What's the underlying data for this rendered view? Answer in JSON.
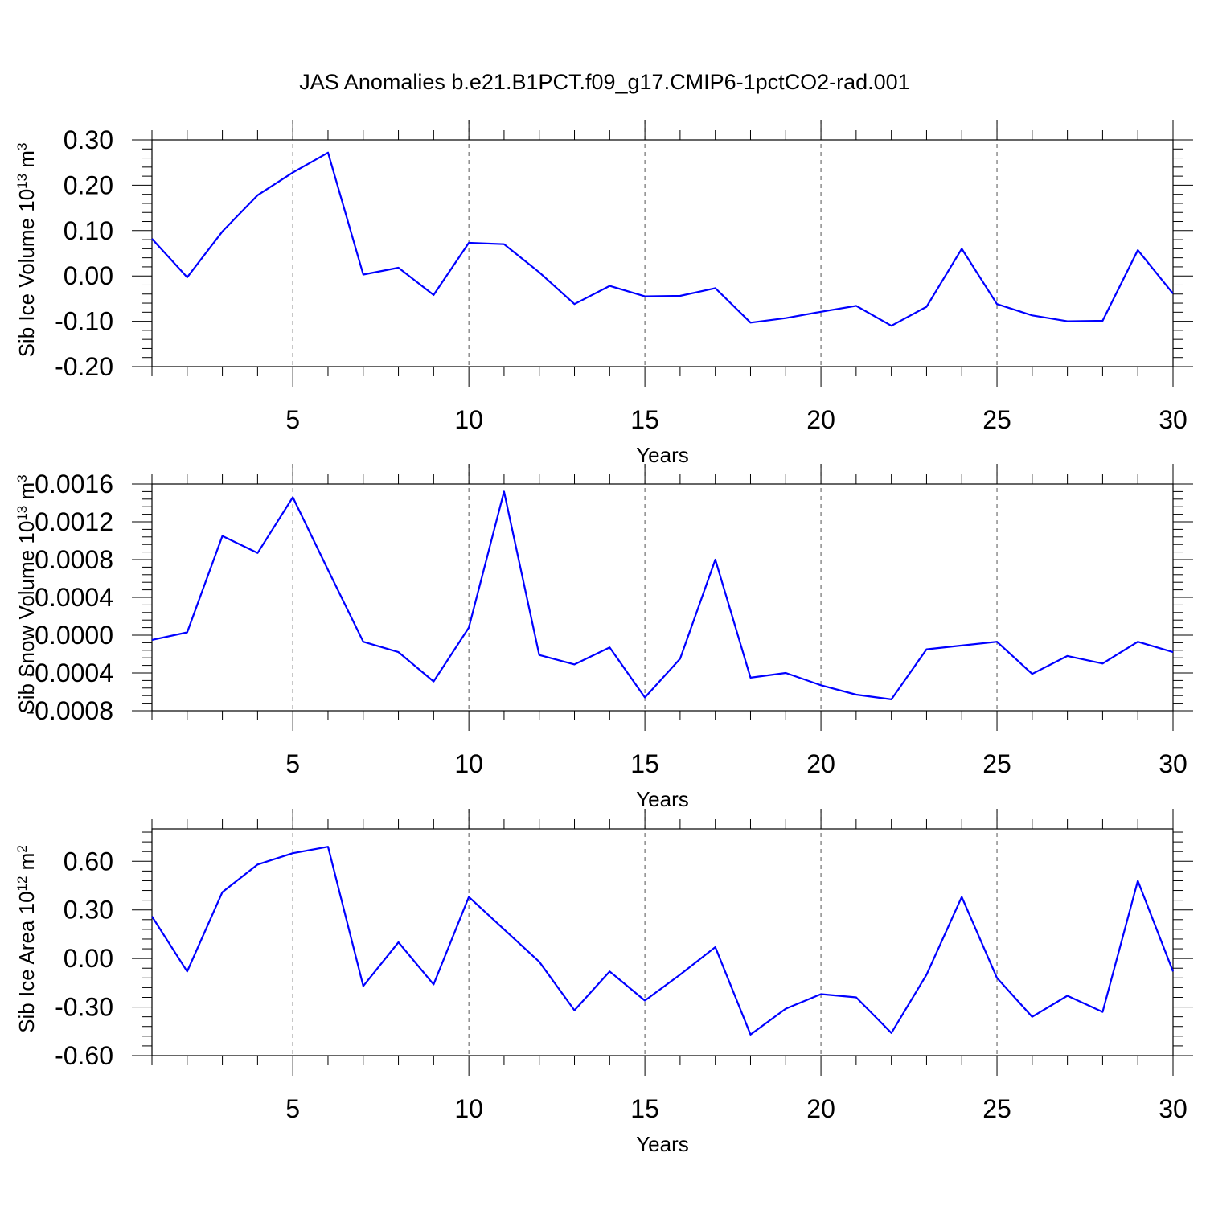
{
  "title": "JAS Anomalies b.e21.B1PCT.f09_g17.CMIP6-1pctCO2-rad.001",
  "colors": {
    "series": "#0000ff",
    "axis": "#000000",
    "grid": "#555555"
  },
  "chart_data": [
    {
      "type": "line",
      "title": "JAS Anomalies b.e21.B1PCT.f09_g17.CMIP6-1pctCO2-rad.001",
      "xlabel": "Years",
      "ylabel": "Sib Ice Volume 10",
      "ylabel_exponent": "13",
      "ylabel_unit": "m",
      "ylabel_unit_exponent": "3",
      "xlim": [
        1,
        30
      ],
      "ylim": [
        -0.2,
        0.3
      ],
      "xticks": [
        5,
        10,
        15,
        20,
        25,
        30
      ],
      "xtick_labels": [
        "5",
        "10",
        "15",
        "20",
        "25",
        "30"
      ],
      "yticks": [
        -0.2,
        -0.1,
        0.0,
        0.1,
        0.2,
        0.3
      ],
      "ytick_labels": [
        "-0.20",
        "-0.10",
        "0.00",
        "0.10",
        "0.20",
        "0.30"
      ],
      "grid": "vertical dashed at major x ticks",
      "x": [
        1,
        2,
        3,
        4,
        5,
        6,
        7,
        8,
        9,
        10,
        11,
        12,
        13,
        14,
        15,
        16,
        17,
        18,
        19,
        20,
        21,
        22,
        23,
        24,
        25,
        26,
        27,
        28,
        29,
        30
      ],
      "series": [
        {
          "color": "#0000ff",
          "values": [
            0.082,
            -0.003,
            0.098,
            0.178,
            0.228,
            0.272,
            0.003,
            0.018,
            -0.042,
            0.073,
            0.07,
            0.008,
            -0.062,
            -0.022,
            -0.045,
            -0.044,
            -0.027,
            -0.103,
            -0.093,
            -0.079,
            -0.066,
            -0.11,
            -0.068,
            0.06,
            -0.062,
            -0.087,
            -0.1,
            -0.099,
            0.057,
            -0.039
          ]
        }
      ]
    },
    {
      "type": "line",
      "xlabel": "Years",
      "ylabel": "Sib Snow Volume 10",
      "ylabel_exponent": "13",
      "ylabel_unit": "m",
      "ylabel_unit_exponent": "3",
      "xlim": [
        1,
        30
      ],
      "ylim": [
        -0.0008,
        0.0016
      ],
      "xticks": [
        5,
        10,
        15,
        20,
        25,
        30
      ],
      "xtick_labels": [
        "5",
        "10",
        "15",
        "20",
        "25",
        "30"
      ],
      "yticks": [
        -0.0008,
        -0.0004,
        0.0,
        0.0004,
        0.0008,
        0.0012,
        0.0016
      ],
      "ytick_labels": [
        "-0.0008",
        "-0.0004",
        "0.0000",
        "0.0004",
        "0.0008",
        "0.0012",
        "0.0016"
      ],
      "grid": "vertical dashed at major x ticks",
      "x": [
        1,
        2,
        3,
        4,
        5,
        6,
        7,
        8,
        9,
        10,
        11,
        12,
        13,
        14,
        15,
        16,
        17,
        18,
        19,
        20,
        21,
        22,
        23,
        24,
        25,
        26,
        27,
        28,
        29,
        30
      ],
      "series": [
        {
          "color": "#0000ff",
          "values": [
            -5e-05,
            3e-05,
            0.00105,
            0.00087,
            0.00146,
            0.00069,
            -7e-05,
            -0.00018,
            -0.00049,
            8e-05,
            0.00152,
            -0.00021,
            -0.00031,
            -0.00013,
            -0.00066,
            -0.00025,
            0.0008,
            -0.00045,
            -0.0004,
            -0.00053,
            -0.00063,
            -0.00068,
            -0.00015,
            -0.00011,
            -7e-05,
            -0.00041,
            -0.00022,
            -0.0003,
            -7e-05,
            -0.00018
          ]
        }
      ]
    },
    {
      "type": "line",
      "xlabel": "Years",
      "ylabel": "Sib Ice Area 10",
      "ylabel_exponent": "12",
      "ylabel_unit": "m",
      "ylabel_unit_exponent": "2",
      "xlim": [
        1,
        30
      ],
      "ylim": [
        -0.6,
        0.8
      ],
      "xticks": [
        5,
        10,
        15,
        20,
        25,
        30
      ],
      "xtick_labels": [
        "5",
        "10",
        "15",
        "20",
        "25",
        "30"
      ],
      "yticks": [
        -0.6,
        -0.3,
        0.0,
        0.3,
        0.6
      ],
      "ytick_labels": [
        "-0.60",
        "-0.30",
        "0.00",
        "0.30",
        "0.60"
      ],
      "grid": "vertical dashed at major x ticks",
      "x": [
        1,
        2,
        3,
        4,
        5,
        6,
        7,
        8,
        9,
        10,
        11,
        12,
        13,
        14,
        15,
        16,
        17,
        18,
        19,
        20,
        21,
        22,
        23,
        24,
        25,
        26,
        27,
        28,
        29,
        30
      ],
      "series": [
        {
          "color": "#0000ff",
          "values": [
            0.26,
            -0.08,
            0.41,
            0.58,
            0.65,
            0.69,
            -0.17,
            0.1,
            -0.16,
            0.38,
            0.18,
            -0.02,
            -0.32,
            -0.08,
            -0.26,
            -0.1,
            0.07,
            -0.47,
            -0.31,
            -0.22,
            -0.24,
            -0.46,
            -0.1,
            0.38,
            -0.12,
            -0.36,
            -0.23,
            -0.33,
            0.48,
            -0.08
          ]
        }
      ]
    }
  ]
}
